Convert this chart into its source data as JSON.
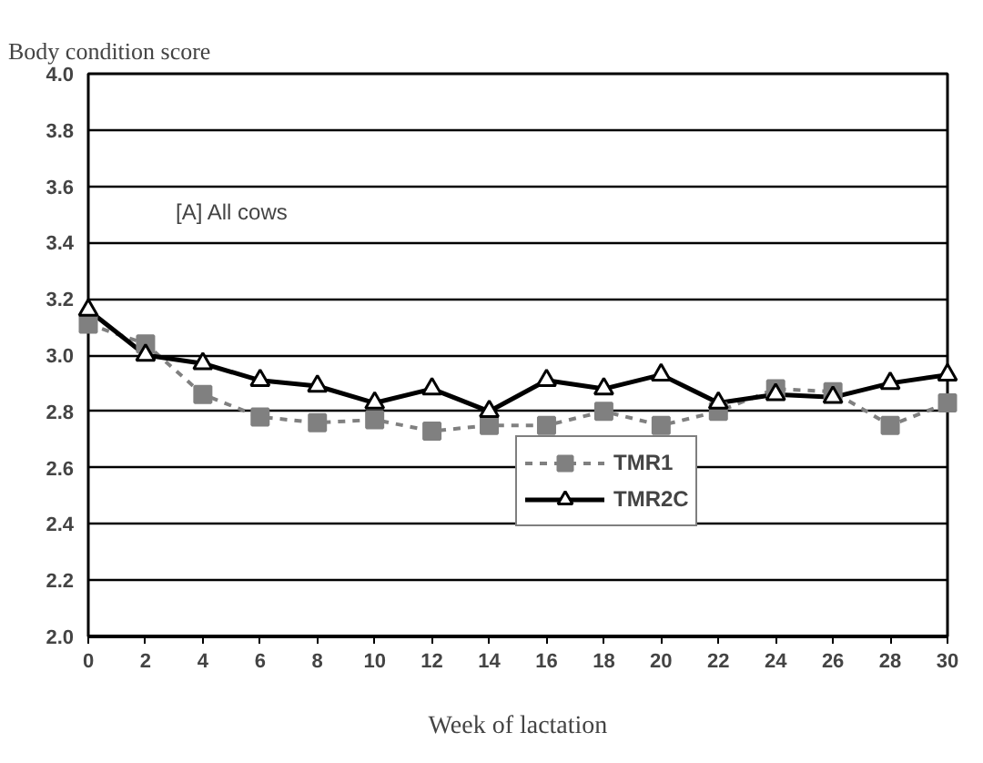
{
  "chart_data": {
    "type": "line",
    "title": "Body condition score",
    "xlabel": "Week of lactation",
    "annotations": [
      "[A]  All cows"
    ],
    "x": [
      0,
      2,
      4,
      6,
      8,
      10,
      12,
      14,
      16,
      18,
      20,
      22,
      24,
      26,
      28,
      30
    ],
    "series": [
      {
        "name": "TMR1",
        "color": "#808080",
        "marker": "square",
        "line_style": "dashed",
        "values": [
          3.11,
          3.04,
          2.86,
          2.78,
          2.76,
          2.77,
          2.73,
          2.75,
          2.75,
          2.8,
          2.75,
          2.8,
          2.88,
          2.87,
          2.75,
          2.83
        ]
      },
      {
        "name": "TMR2C",
        "color": "#000000",
        "marker": "triangle",
        "line_style": "solid",
        "values": [
          3.16,
          3.0,
          2.97,
          2.91,
          2.89,
          2.83,
          2.88,
          2.8,
          2.91,
          2.88,
          2.93,
          2.83,
          2.86,
          2.85,
          2.9,
          2.93
        ]
      }
    ],
    "xlim": [
      0,
      30
    ],
    "xticks": [
      0,
      2,
      4,
      6,
      8,
      10,
      12,
      14,
      16,
      18,
      20,
      22,
      24,
      26,
      28,
      30
    ],
    "ylim": [
      2.0,
      4.0
    ],
    "yticks": [
      {
        "value": 2.0,
        "label": "2.0"
      },
      {
        "value": 2.2,
        "label": "2.2"
      },
      {
        "value": 2.4,
        "label": "2.4"
      },
      {
        "value": 2.6,
        "label": "2.6"
      },
      {
        "value": 2.8,
        "label": "2.8"
      },
      {
        "value": 3.0,
        "label": "3.0"
      },
      {
        "value": 3.2,
        "label": "3.2"
      },
      {
        "value": 3.4,
        "label": "3.4"
      },
      {
        "value": 3.6,
        "label": "3.6"
      },
      {
        "value": 3.8,
        "label": "3.8"
      },
      {
        "value": 4.0,
        "label": "4.0"
      }
    ],
    "grid": "y",
    "legend": "bottom"
  }
}
